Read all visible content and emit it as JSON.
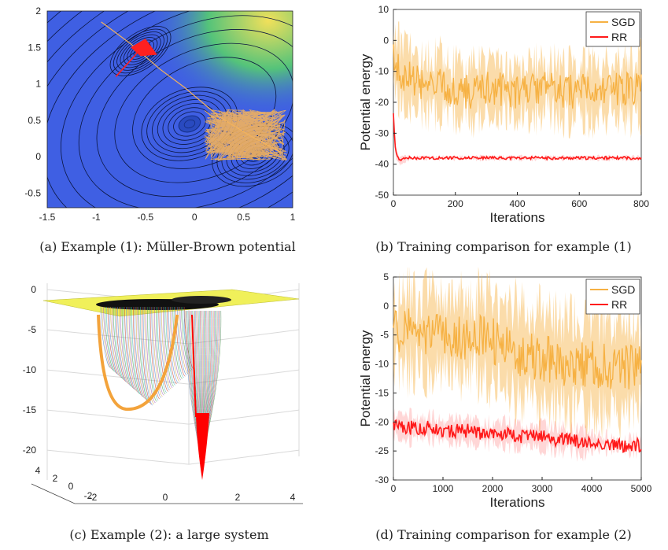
{
  "chart_data": [
    {
      "type": "contour",
      "title": "",
      "xlabel": "",
      "ylabel": "",
      "xlim": [
        -1.5,
        1
      ],
      "ylim": [
        -0.7,
        2
      ],
      "xticks": [
        "-1.5",
        "-1",
        "-0.5",
        "0",
        "0.5",
        "1"
      ],
      "yticks": [
        "2",
        "1.5",
        "1",
        "0.5",
        "0",
        "-0.5"
      ],
      "colors": {
        "background": "#3f5fe3",
        "low": "#1a3a9b",
        "high": "#f1e05a",
        "contour": "#111111"
      },
      "series": [
        {
          "name": "SGD",
          "color": "#f3b25c",
          "x": [
            -0.95,
            -0.65,
            -0.35,
            -0.1,
            0.25,
            0.55,
            0.9
          ],
          "y": [
            1.85,
            1.55,
            1.2,
            0.95,
            0.55,
            0.3,
            0.05
          ]
        },
        {
          "name": "RR",
          "color": "#ff2020",
          "x": [
            -0.8,
            -0.7,
            -0.6,
            -0.55,
            -0.5
          ],
          "y": [
            1.1,
            1.25,
            1.4,
            1.5,
            1.55
          ]
        }
      ],
      "caption": "(a) Example (1): Müller-Brown potential"
    },
    {
      "type": "line",
      "title": "",
      "xlabel": "Iterations",
      "ylabel": "Potential energy",
      "xlim": [
        0,
        800
      ],
      "ylim": [
        -50,
        10
      ],
      "xticks": [
        "0",
        "200",
        "400",
        "600",
        "800"
      ],
      "yticks": [
        "10",
        "0",
        "-10",
        "-20",
        "-30",
        "-40",
        "-50"
      ],
      "legend": "top-right",
      "series": [
        {
          "name": "SGD",
          "color": "#f6b143",
          "x": [
            0,
            20,
            50,
            100,
            150,
            200,
            250,
            300,
            350,
            400,
            450,
            500,
            550,
            600,
            650,
            700,
            750,
            800
          ],
          "values": [
            -6,
            -10,
            -12,
            -15,
            -14,
            -16,
            -17,
            -15,
            -16,
            -17,
            -16,
            -15,
            -17,
            -16,
            -17,
            -16,
            -16,
            -15
          ],
          "band": [
            10,
            9,
            8,
            8,
            9,
            8,
            8,
            9,
            8,
            8,
            9,
            8,
            8,
            9,
            8,
            8,
            9,
            9
          ]
        },
        {
          "name": "RR",
          "color": "#ff1a1a",
          "x": [
            0,
            5,
            10,
            20,
            30,
            50,
            100,
            200,
            300,
            400,
            500,
            600,
            700,
            800
          ],
          "values": [
            -24,
            -34,
            -37,
            -39,
            -38.5,
            -38,
            -38,
            -38,
            -38,
            -38,
            -38,
            -38,
            -38,
            -38
          ],
          "band": [
            2,
            2,
            1.5,
            1,
            1,
            0.5,
            0.5,
            0.5,
            0.5,
            0.5,
            0.5,
            0.5,
            0.5,
            0.5
          ]
        }
      ],
      "caption": "(b) Training comparison for example (1)"
    },
    {
      "type": "surface",
      "title": "",
      "zlim": [
        -24,
        0
      ],
      "zticks": [
        "0",
        "-5",
        "-10",
        "-15",
        "-20"
      ],
      "xticks": [
        "-2",
        "0",
        "2",
        "4"
      ],
      "yticks": [
        "4",
        "2",
        "0",
        "-2"
      ],
      "colors": {
        "surface": "#f0f05a",
        "path_sgd": "#f3a33b",
        "path_rr": "#ff0000"
      },
      "caption": "(c) Example (2): a large system"
    },
    {
      "type": "line",
      "title": "",
      "xlabel": "Iterations",
      "ylabel": "Potential energy",
      "xlim": [
        0,
        5000
      ],
      "ylim": [
        -30,
        5
      ],
      "xticks": [
        "0",
        "1000",
        "2000",
        "3000",
        "4000",
        "5000"
      ],
      "yticks": [
        "5",
        "0",
        "-5",
        "-10",
        "-15",
        "-20",
        "-25",
        "-30"
      ],
      "legend": "top-right",
      "series": [
        {
          "name": "SGD",
          "color": "#f6b143",
          "x": [
            0,
            250,
            500,
            750,
            1000,
            1250,
            1500,
            1750,
            2000,
            2250,
            2500,
            2750,
            3000,
            3250,
            3500,
            3750,
            4000,
            4250,
            4500,
            4750,
            5000
          ],
          "values": [
            -5,
            -4,
            -5,
            -4.5,
            -5,
            -5,
            -5.5,
            -5,
            -6,
            -7,
            -8,
            -8.5,
            -9,
            -9.5,
            -10,
            -10,
            -10,
            -10.5,
            -10.5,
            -10.5,
            -10.5
          ],
          "band": [
            6,
            7,
            6,
            7,
            6,
            6,
            7,
            7,
            8,
            8,
            8,
            8,
            8,
            8,
            8,
            8,
            8,
            8,
            8,
            8,
            8
          ]
        },
        {
          "name": "RR",
          "color": "#ff1a1a",
          "x": [
            0,
            250,
            500,
            750,
            1000,
            1250,
            1500,
            1750,
            2000,
            2250,
            2500,
            2750,
            3000,
            3250,
            3500,
            3750,
            4000,
            4250,
            4500,
            4750,
            5000
          ],
          "values": [
            -20.5,
            -21,
            -21,
            -21,
            -21.5,
            -21.5,
            -21.5,
            -22,
            -22,
            -22,
            -22.5,
            -22.5,
            -22.5,
            -23,
            -23,
            -23.5,
            -23.5,
            -23.5,
            -24,
            -24,
            -24
          ],
          "band": [
            2,
            2,
            2,
            2,
            2,
            2,
            2,
            2,
            2,
            2,
            2,
            2,
            2,
            2,
            2,
            2,
            1.5,
            1,
            1,
            1,
            1
          ]
        }
      ],
      "caption": "(d) Training comparison for example (2)"
    }
  ]
}
